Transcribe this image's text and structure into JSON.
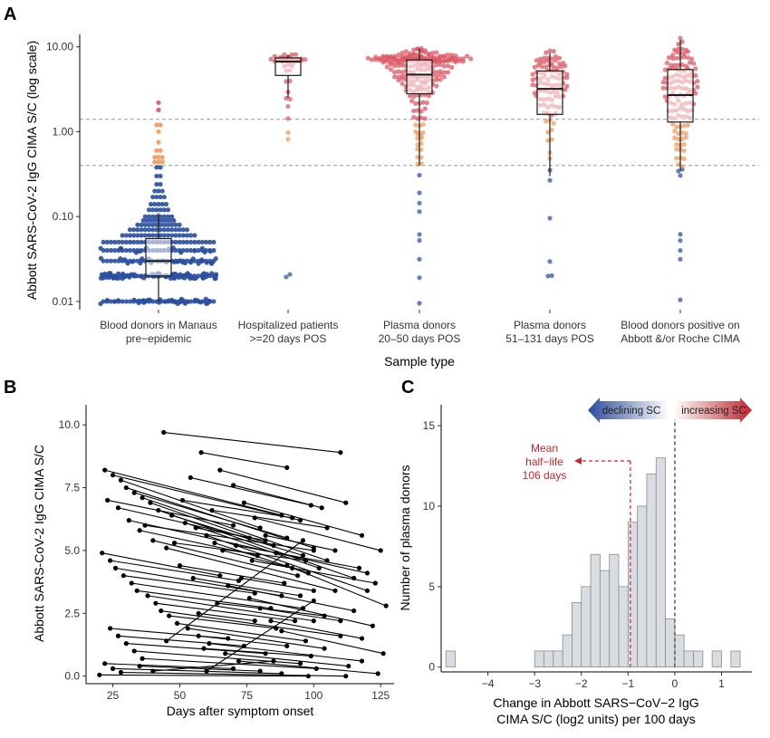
{
  "figure": {
    "panel_labels": [
      "A",
      "B",
      "C"
    ]
  },
  "chart_data": [
    {
      "type": "scatter",
      "panel": "A",
      "subtype": "beeswarm with boxplots",
      "scale": "log",
      "ylabel": "Abbott SARS-CoV-2 IgG CIMA S/C (log scale)",
      "xlabel": "Sample type",
      "ylim": [
        0.008,
        14
      ],
      "yticks": [
        0.01,
        0.1,
        1,
        10
      ],
      "ytick_labels": [
        "0.01",
        "0.10",
        "1.00",
        "10.00"
      ],
      "reference_lines": [
        0.4,
        1.4
      ],
      "colors": {
        "low": "#2a4fa0",
        "mid": "#ee9a5c",
        "high": "#d9535e",
        "box": "#1a1a1a",
        "ref": "#999999"
      },
      "categories": [
        [
          "Blood donors in Manaus",
          "pre−epidemic"
        ],
        [
          "Hospitalized patients",
          ">=20 days POS"
        ],
        [
          "Plasma donors",
          "20–50 days POS"
        ],
        [
          "Plasma donors",
          "51–131 days POS"
        ],
        [
          "Blood donors positive on",
          "Abbott &/or Roche CIMA"
        ]
      ],
      "boxes": [
        {
          "q1": 0.02,
          "median": 0.03,
          "q3": 0.055,
          "whisker_low": 0.01,
          "whisker_high": 0.11
        },
        {
          "q1": 4.6,
          "median": 6.7,
          "q3": 7.4,
          "whisker_low": 2.5,
          "whisker_high": 8.0
        },
        {
          "q1": 2.8,
          "median": 4.7,
          "q3": 7.0,
          "whisker_low": 0.4,
          "whisker_high": 9.5
        },
        {
          "q1": 1.6,
          "median": 3.2,
          "q3": 5.2,
          "whisker_low": 0.3,
          "whisker_high": 8.5
        },
        {
          "q1": 1.3,
          "median": 2.7,
          "q3": 5.4,
          "whisker_low": 0.35,
          "whisker_high": 12.0
        }
      ],
      "groups": [
        {
          "rows": [
            [
              0.01,
              70
            ],
            [
              0.02,
              110
            ],
            [
              0.03,
              62
            ],
            [
              0.04,
              44
            ],
            [
              0.05,
              30
            ],
            [
              0.06,
              20
            ],
            [
              0.07,
              16
            ],
            [
              0.08,
              12
            ],
            [
              0.09,
              9
            ],
            [
              0.1,
              8
            ],
            [
              0.12,
              6
            ],
            [
              0.14,
              5
            ],
            [
              0.17,
              4
            ],
            [
              0.2,
              3
            ],
            [
              0.24,
              2
            ],
            [
              0.3,
              2
            ],
            [
              0.38,
              2
            ],
            [
              0.44,
              3
            ],
            [
              0.5,
              3
            ],
            [
              0.6,
              2
            ],
            [
              0.75,
              1
            ],
            [
              1.0,
              1
            ],
            [
              1.2,
              2
            ],
            [
              1.8,
              1
            ],
            [
              2.2,
              1
            ]
          ]
        },
        {
          "rows": [
            [
              0.02,
              2
            ],
            [
              0.8,
              1
            ],
            [
              1.0,
              1
            ],
            [
              1.5,
              1
            ],
            [
              2.0,
              1
            ],
            [
              2.5,
              2
            ],
            [
              3.0,
              1
            ],
            [
              4.0,
              2
            ],
            [
              5.0,
              2
            ],
            [
              6.0,
              3
            ],
            [
              6.6,
              4
            ],
            [
              7.0,
              8
            ],
            [
              7.4,
              10
            ],
            [
              7.8,
              5
            ]
          ]
        },
        {
          "rows": [
            [
              0.01,
              1
            ],
            [
              0.02,
              1
            ],
            [
              0.03,
              1
            ],
            [
              0.05,
              1
            ],
            [
              0.06,
              1
            ],
            [
              0.12,
              1
            ],
            [
              0.15,
              1
            ],
            [
              0.2,
              1
            ],
            [
              0.3,
              1
            ],
            [
              0.4,
              2
            ],
            [
              0.5,
              2
            ],
            [
              0.6,
              2
            ],
            [
              0.7,
              2
            ],
            [
              0.8,
              2
            ],
            [
              0.9,
              2
            ],
            [
              1.0,
              3
            ],
            [
              1.2,
              3
            ],
            [
              1.5,
              4
            ],
            [
              1.8,
              4
            ],
            [
              2.2,
              5
            ],
            [
              2.6,
              6
            ],
            [
              3.0,
              8
            ],
            [
              3.5,
              10
            ],
            [
              4.0,
              12
            ],
            [
              4.6,
              14
            ],
            [
              5.2,
              16
            ],
            [
              6.0,
              18
            ],
            [
              6.6,
              20
            ],
            [
              7.0,
              24
            ],
            [
              7.4,
              28
            ],
            [
              7.8,
              20
            ],
            [
              8.4,
              10
            ],
            [
              9.0,
              4
            ],
            [
              9.6,
              2
            ]
          ]
        },
        {
          "rows": [
            [
              0.02,
              2
            ],
            [
              0.03,
              1
            ],
            [
              0.1,
              1
            ],
            [
              0.28,
              1
            ],
            [
              0.35,
              1
            ],
            [
              0.5,
              1
            ],
            [
              0.6,
              1
            ],
            [
              0.8,
              2
            ],
            [
              1.0,
              2
            ],
            [
              1.3,
              3
            ],
            [
              1.6,
              4
            ],
            [
              2.0,
              6
            ],
            [
              2.5,
              8
            ],
            [
              3.0,
              9
            ],
            [
              3.6,
              10
            ],
            [
              4.3,
              10
            ],
            [
              5.0,
              10
            ],
            [
              5.8,
              9
            ],
            [
              6.6,
              8
            ],
            [
              7.5,
              6
            ],
            [
              8.5,
              3
            ]
          ]
        },
        {
          "rows": [
            [
              0.01,
              1
            ],
            [
              0.03,
              1
            ],
            [
              0.04,
              1
            ],
            [
              0.05,
              1
            ],
            [
              0.06,
              1
            ],
            [
              0.3,
              1
            ],
            [
              0.35,
              2
            ],
            [
              0.4,
              2
            ],
            [
              0.5,
              3
            ],
            [
              0.6,
              3
            ],
            [
              0.7,
              3
            ],
            [
              0.85,
              4
            ],
            [
              1.0,
              4
            ],
            [
              1.2,
              5
            ],
            [
              1.5,
              6
            ],
            [
              1.8,
              7
            ],
            [
              2.2,
              8
            ],
            [
              2.7,
              9
            ],
            [
              3.2,
              10
            ],
            [
              3.8,
              10
            ],
            [
              4.5,
              9
            ],
            [
              5.3,
              9
            ],
            [
              6.2,
              8
            ],
            [
              7.2,
              7
            ],
            [
              8.4,
              5
            ],
            [
              9.6,
              4
            ],
            [
              11.0,
              2
            ],
            [
              12.5,
              1
            ]
          ]
        }
      ]
    },
    {
      "type": "line",
      "panel": "B",
      "subtype": "paired spaghetti",
      "xlabel": "Days after symptom onset",
      "ylabel": "Abbott SARS-CoV-2 IgG CIMA S/C",
      "xlim": [
        15,
        130
      ],
      "ylim": [
        -0.3,
        10.8
      ],
      "xticks": [
        25,
        50,
        75,
        100,
        125
      ],
      "yticks": [
        0,
        2.5,
        5,
        7.5,
        10
      ],
      "ytick_labels": [
        "0.0",
        "2.5",
        "5.0",
        "7.5",
        "10.0"
      ],
      "pairs": [
        [
          44,
          9.7,
          110,
          8.9
        ],
        [
          22,
          8.2,
          88,
          6.4
        ],
        [
          25,
          8.0,
          95,
          6.2
        ],
        [
          28,
          7.8,
          80,
          5.9
        ],
        [
          30,
          7.5,
          100,
          5.1
        ],
        [
          33,
          7.3,
          90,
          5.5
        ],
        [
          36,
          7.1,
          105,
          4.6
        ],
        [
          39,
          6.9,
          85,
          5.2
        ],
        [
          42,
          6.6,
          115,
          3.9
        ],
        [
          47,
          6.4,
          96,
          4.8
        ],
        [
          52,
          6.1,
          102,
          4.3
        ],
        [
          56,
          5.9,
          82,
          5.4
        ],
        [
          60,
          5.6,
          120,
          3.4
        ],
        [
          63,
          5.3,
          98,
          4.1
        ],
        [
          66,
          5.0,
          92,
          4.3
        ],
        [
          23,
          7.0,
          70,
          6.0
        ],
        [
          27,
          6.7,
          76,
          5.5
        ],
        [
          31,
          6.2,
          86,
          4.9
        ],
        [
          35,
          5.8,
          79,
          4.8
        ],
        [
          40,
          5.4,
          94,
          4.0
        ],
        [
          45,
          5.1,
          108,
          3.4
        ],
        [
          21,
          4.9,
          65,
          4.0
        ],
        [
          24,
          4.6,
          72,
          3.8
        ],
        [
          26,
          4.3,
          88,
          3.2
        ],
        [
          29,
          4.0,
          78,
          3.3
        ],
        [
          32,
          3.7,
          96,
          2.7
        ],
        [
          34,
          3.4,
          84,
          2.7
        ],
        [
          38,
          3.2,
          100,
          2.2
        ],
        [
          41,
          2.9,
          93,
          2.2
        ],
        [
          43,
          2.6,
          110,
          1.6
        ],
        [
          46,
          2.4,
          86,
          1.9
        ],
        [
          49,
          2.1,
          97,
          1.4
        ],
        [
          53,
          1.9,
          104,
          1.1
        ],
        [
          57,
          1.6,
          90,
          1.2
        ],
        [
          61,
          1.3,
          118,
          0.6
        ],
        [
          24,
          1.9,
          68,
          1.5
        ],
        [
          27,
          1.6,
          74,
          1.2
        ],
        [
          30,
          1.3,
          82,
          0.9
        ],
        [
          33,
          1.0,
          95,
          0.5
        ],
        [
          36,
          0.7,
          101,
          0.3
        ],
        [
          22,
          0.5,
          70,
          0.3
        ],
        [
          25,
          0.3,
          88,
          0.1
        ],
        [
          20,
          0.05,
          98,
          0.0
        ],
        [
          28,
          0.15,
          112,
          0.0
        ],
        [
          35,
          0.4,
          80,
          0.2
        ],
        [
          58,
          8.9,
          90,
          8.3
        ],
        [
          65,
          8.2,
          112,
          6.9
        ],
        [
          70,
          7.6,
          103,
          6.7
        ],
        [
          74,
          6.9,
          118,
          5.6
        ],
        [
          78,
          6.3,
          125,
          5.0
        ],
        [
          82,
          5.6,
          108,
          5.0
        ],
        [
          86,
          4.9,
          120,
          4.1
        ],
        [
          90,
          4.4,
          127,
          2.8
        ],
        [
          73,
          3.9,
          100,
          3.4
        ],
        [
          68,
          3.6,
          115,
          2.6
        ],
        [
          76,
          3.1,
          122,
          2.0
        ],
        [
          80,
          2.7,
          110,
          2.2
        ],
        [
          84,
          2.2,
          118,
          1.5
        ],
        [
          88,
          1.8,
          126,
          0.9
        ],
        [
          64,
          2.9,
          104,
          2.4
        ],
        [
          55,
          3.9,
          95,
          3.2
        ],
        [
          50,
          4.4,
          89,
          3.7
        ],
        [
          48,
          5.3,
          97,
          4.6
        ],
        [
          37,
          6.0,
          100,
          5.0
        ],
        [
          51,
          7.0,
          92,
          6.3
        ],
        [
          54,
          7.9,
          99,
          6.8
        ],
        [
          62,
          6.6,
          105,
          5.9
        ],
        [
          71,
          5.2,
          117,
          4.3
        ],
        [
          77,
          4.6,
          123,
          3.7
        ],
        [
          59,
          1.1,
          99,
          0.8
        ],
        [
          67,
          0.9,
          113,
          0.4
        ],
        [
          72,
          0.6,
          124,
          0.1
        ],
        [
          45,
          1.4,
          96,
          5.4
        ],
        [
          60,
          0.2,
          100,
          3.0
        ],
        [
          40,
          0.2,
          85,
          0.6
        ],
        [
          57,
          2.5,
          78,
          2.2
        ]
      ]
    },
    {
      "type": "bar",
      "panel": "C",
      "subtype": "histogram",
      "xlabel": [
        "Change in Abbott SARS−CoV−2 IgG",
        "CIMA S/C (log2 units) per 100 days"
      ],
      "ylabel": "Number of plasma donors",
      "xlim": [
        -5.0,
        1.65
      ],
      "ylim": [
        -0.3,
        16.3
      ],
      "xticks": [
        -4,
        -3,
        -2,
        -1,
        0,
        1
      ],
      "xtick_labels": [
        "−4",
        "−3",
        "−2",
        "−1",
        "0",
        "1"
      ],
      "yticks": [
        0,
        5,
        10,
        15
      ],
      "bin_width": 0.2,
      "bins": [
        [
          -4.8,
          1
        ],
        [
          -2.9,
          1
        ],
        [
          -2.7,
          1
        ],
        [
          -2.5,
          1
        ],
        [
          -2.3,
          2
        ],
        [
          -2.1,
          4
        ],
        [
          -1.9,
          5
        ],
        [
          -1.7,
          7
        ],
        [
          -1.5,
          6
        ],
        [
          -1.3,
          7
        ],
        [
          -1.1,
          5
        ],
        [
          -0.9,
          9
        ],
        [
          -0.7,
          10
        ],
        [
          -0.5,
          12
        ],
        [
          -0.3,
          13
        ],
        [
          -0.1,
          3
        ],
        [
          0.1,
          2
        ],
        [
          0.3,
          1
        ],
        [
          0.5,
          1
        ],
        [
          0.9,
          1
        ],
        [
          1.3,
          1
        ]
      ],
      "mean_marker": -0.95,
      "mean_marker_count": 9,
      "zero_line": 0,
      "annotation": [
        "Mean",
        "half−life",
        "106 days"
      ],
      "declining_label": "declining SC",
      "increasing_label": "increasing SC",
      "colors": {
        "bar_fill": "#d9dce1",
        "bar_edge": "#8a8d92",
        "accent": "#c0262d",
        "blue": "#2d4a9a"
      }
    }
  ]
}
